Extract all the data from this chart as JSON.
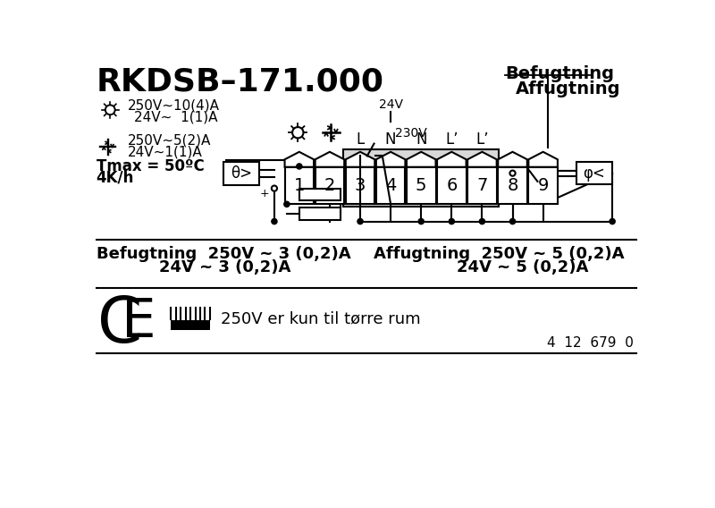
{
  "title": "RKDSB–171.000",
  "bg_color": "#ffffff",
  "lc": "#000000",
  "terminal_labels": [
    "1",
    "2",
    "3",
    "4",
    "5",
    "6",
    "7",
    "8",
    "9"
  ],
  "pin_labels": [
    "",
    "",
    "L",
    "N",
    "N",
    "L’",
    "L’",
    "",
    ""
  ],
  "label_befugtning": "Befugtning",
  "label_affugtning": "Affugtning",
  "sun_r1": "250V~10(4)A",
  "sun_r2": "24V~  1(1)A",
  "snow_r1": "250V~5(2)A",
  "snow_r2": "24V~1(1)A",
  "tmax": "Tmax = 50ºC",
  "fourKh": "4K/h",
  "bot1a": "Befugtning  250V ~ 3 (0,2)A",
  "bot1b": "24V ~ 3 (0,2)A",
  "bot2a": "Affugtning  250V ~ 5 (0,2)A",
  "bot2b": "24V ~ 5 (0,2)A",
  "ce_note": "250V er kun til tørre rum",
  "serial": "4  12  679  0",
  "n_bars": 9,
  "volt_24": "24V",
  "volt_230": "230V"
}
